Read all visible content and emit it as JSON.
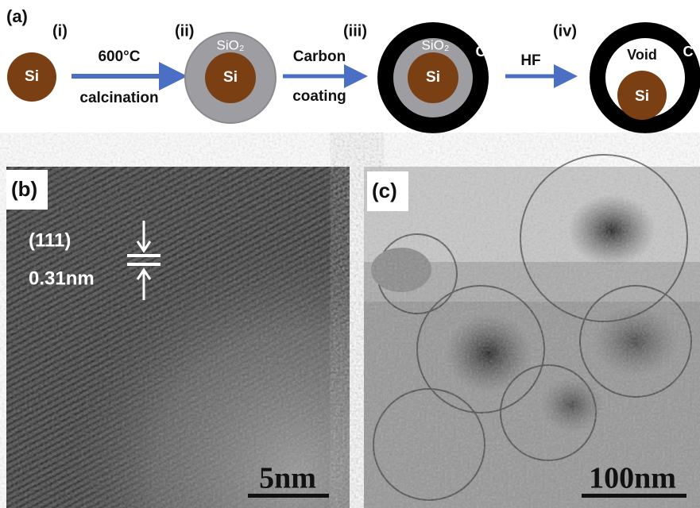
{
  "panel_a": {
    "label": "(a)",
    "steps": [
      {
        "label": "(i)",
        "core": "Si"
      },
      {
        "label": "(ii)",
        "core": "Si",
        "shell": "SiO₂"
      },
      {
        "label": "(iii)",
        "core": "Si",
        "shell": "SiO₂",
        "coating": "C"
      },
      {
        "label": "(iv)",
        "core": "Si",
        "void": "Void",
        "coating": "C"
      }
    ],
    "arrows": [
      {
        "top": "600°C",
        "bottom": "calcination"
      },
      {
        "top": "Carbon",
        "bottom": "coating"
      },
      {
        "top": "HF"
      }
    ]
  },
  "panel_b": {
    "label": "(b)",
    "plane": "(111)",
    "spacing": "0.31nm",
    "scale_bar": "5nm"
  },
  "panel_c": {
    "label": "(c)",
    "scale_bar": "100nm"
  }
}
